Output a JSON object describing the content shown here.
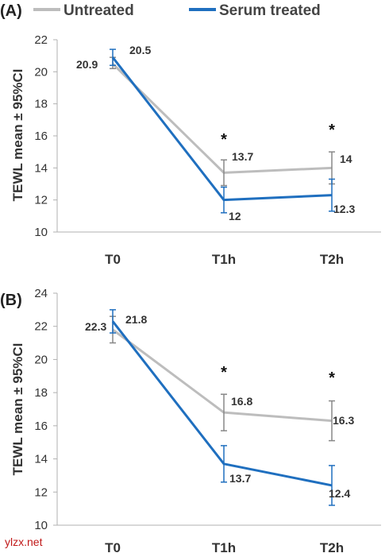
{
  "legend": {
    "items": [
      {
        "label": "Untreated",
        "color": "#bdbdbd"
      },
      {
        "label": "Serum treated",
        "color": "#1f6fbf"
      }
    ]
  },
  "watermark": "ylzx.net",
  "chart_data": [
    {
      "panel_label": "(A)",
      "type": "line",
      "ylabel": "TEWL mean ± 95%CI",
      "ylim": [
        10,
        22
      ],
      "yticks": [
        10,
        12,
        14,
        16,
        18,
        20,
        22
      ],
      "categories": [
        "T0",
        "T1h",
        "T2h"
      ],
      "series": [
        {
          "name": "Untreated",
          "color": "#bdbdbd",
          "values": [
            20.5,
            13.7,
            14
          ],
          "ci_low": [
            20.2,
            12.9,
            13.0
          ],
          "ci_high": [
            20.9,
            14.5,
            15.0
          ],
          "labels": [
            "20.5",
            "13.7",
            "14"
          ]
        },
        {
          "name": "Serum treated",
          "color": "#1f6fbf",
          "values": [
            20.9,
            12,
            12.3
          ],
          "ci_low": [
            20.4,
            11.2,
            11.3
          ],
          "ci_high": [
            21.4,
            12.8,
            13.3
          ],
          "labels": [
            "20.9",
            "12",
            "12.3"
          ]
        }
      ],
      "significance": [
        "",
        "*",
        "*"
      ]
    },
    {
      "panel_label": "(B)",
      "type": "line",
      "ylabel": "TEWL mean ± 95%CI",
      "ylim": [
        10,
        24
      ],
      "yticks": [
        10,
        12,
        14,
        16,
        18,
        20,
        22,
        24
      ],
      "categories": [
        "T0",
        "T1h",
        "T2h"
      ],
      "series": [
        {
          "name": "Untreated",
          "color": "#bdbdbd",
          "values": [
            21.8,
            16.8,
            16.3
          ],
          "ci_low": [
            21.0,
            15.7,
            15.1
          ],
          "ci_high": [
            22.6,
            17.9,
            17.5
          ],
          "labels": [
            "21.8",
            "16.8",
            "16.3"
          ]
        },
        {
          "name": "Serum treated",
          "color": "#1f6fbf",
          "values": [
            22.3,
            13.7,
            12.4
          ],
          "ci_low": [
            21.6,
            12.6,
            11.2
          ],
          "ci_high": [
            23.0,
            14.8,
            13.6
          ],
          "labels": [
            "22.3",
            "13.7",
            "12.4"
          ]
        }
      ],
      "significance": [
        "",
        "*",
        "*"
      ]
    }
  ]
}
